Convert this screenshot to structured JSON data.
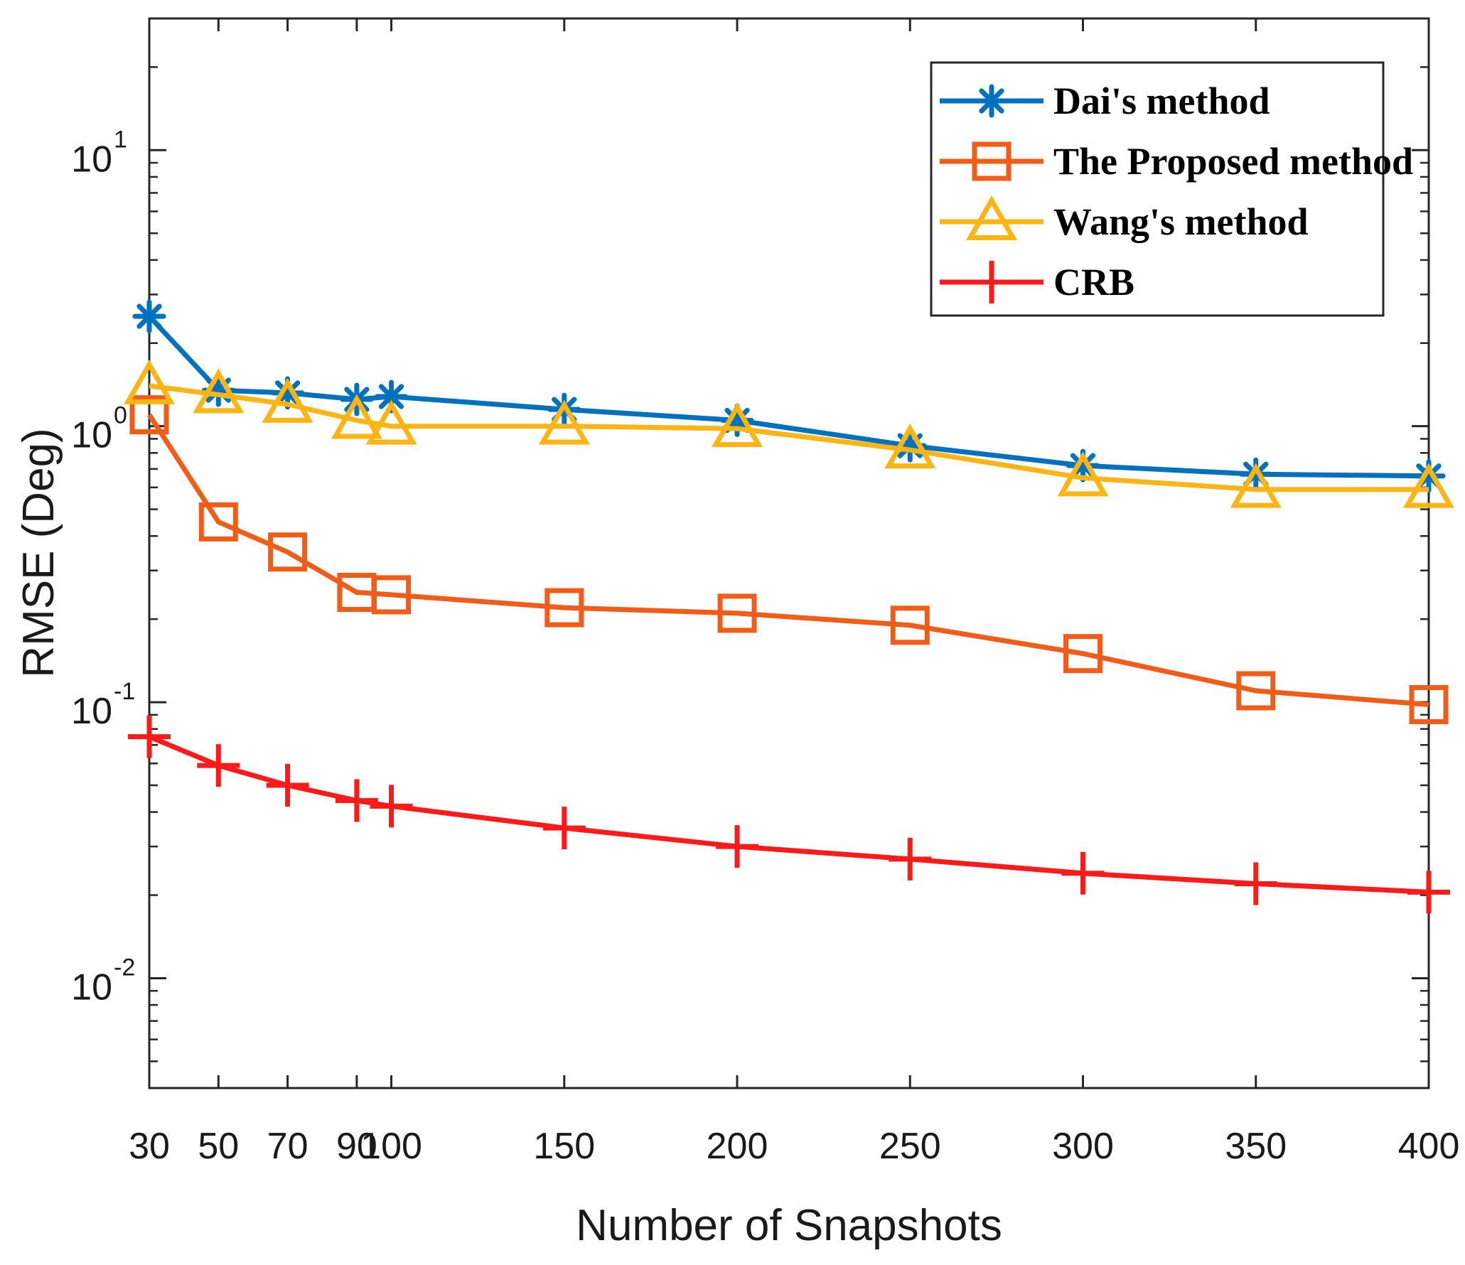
{
  "chart_data": {
    "type": "line",
    "title": "",
    "xlabel": "Number of Snapshots",
    "ylabel": "RMSE (Deg)",
    "yscale": "log",
    "xlim": [
      30,
      400
    ],
    "ylim": [
      0.004,
      30
    ],
    "x": [
      30,
      50,
      70,
      90,
      100,
      150,
      200,
      250,
      300,
      350,
      400
    ],
    "xtick_labels": [
      "30",
      "50",
      "70",
      "90",
      "100",
      "150",
      "200",
      "250",
      "300",
      "350",
      "400"
    ],
    "ytick_values": [
      0.01,
      0.1,
      1,
      10
    ],
    "ytick_labels": [
      {
        "base": "10",
        "exp": "-2"
      },
      {
        "base": "10",
        "exp": "-1"
      },
      {
        "base": "10",
        "exp": "0"
      },
      {
        "base": "10",
        "exp": "1"
      }
    ],
    "legend_position": "top-right",
    "series": [
      {
        "name": "Dai's method",
        "color": "#0072BD",
        "marker": "asterisk",
        "values": [
          2.5,
          1.35,
          1.32,
          1.25,
          1.28,
          1.15,
          1.05,
          0.85,
          0.72,
          0.67,
          0.66
        ]
      },
      {
        "name": "The Proposed method",
        "color": "#F25C19",
        "marker": "square",
        "values": [
          1.1,
          0.45,
          0.35,
          0.25,
          0.245,
          0.22,
          0.21,
          0.19,
          0.15,
          0.11,
          0.098
        ]
      },
      {
        "name": "Wang's method",
        "color": "#FDB515",
        "marker": "triangle",
        "values": [
          1.4,
          1.3,
          1.2,
          1.05,
          1.0,
          1.0,
          0.98,
          0.82,
          0.65,
          0.59,
          0.59
        ]
      },
      {
        "name": "CRB",
        "color": "#FF1A1A",
        "marker": "plus",
        "values": [
          0.075,
          0.059,
          0.05,
          0.044,
          0.042,
          0.035,
          0.03,
          0.027,
          0.024,
          0.022,
          0.0205
        ]
      }
    ]
  }
}
